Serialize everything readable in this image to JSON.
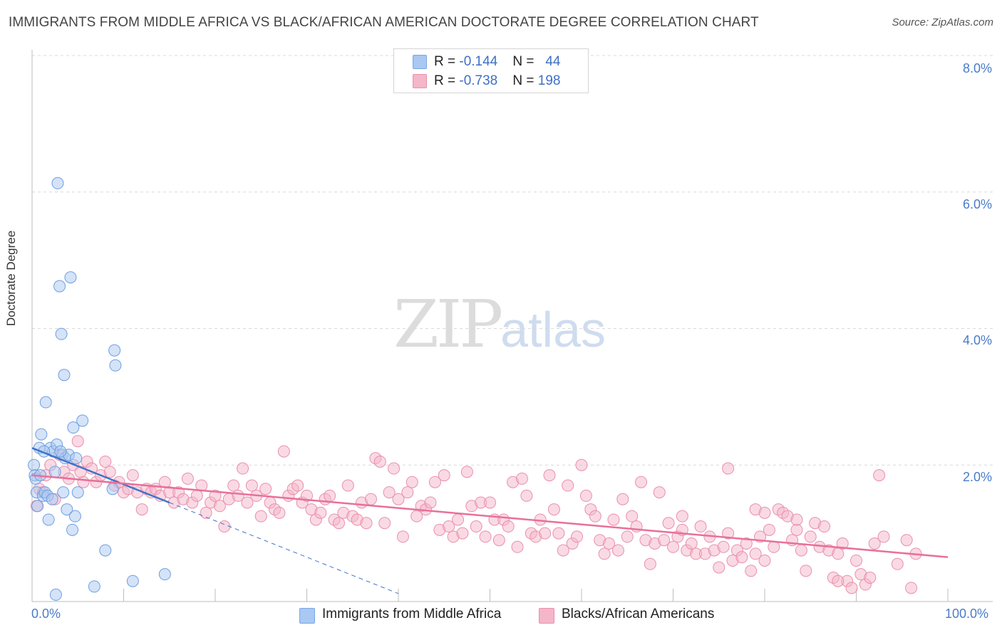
{
  "header": {
    "title": "IMMIGRANTS FROM MIDDLE AFRICA VS BLACK/AFRICAN AMERICAN DOCTORATE DEGREE CORRELATION CHART",
    "source": "Source: ZipAtlas.com"
  },
  "watermark": {
    "zip": "ZIP",
    "atlas": "atlas"
  },
  "legend": {
    "rows": [
      {
        "r_label": "R = ",
        "r_value": "-0.144",
        "n_label": "N = ",
        "n_value": "44",
        "color": "#a9c8f2"
      },
      {
        "r_label": "R = ",
        "r_value": "-0.738",
        "n_label": "N = ",
        "n_value": "198",
        "color": "#f4b6c9"
      }
    ]
  },
  "chart_data": {
    "type": "scatter",
    "title": "IMMIGRANTS FROM MIDDLE AFRICA VS BLACK/AFRICAN AMERICAN DOCTORATE DEGREE CORRELATION CHART",
    "xlabel": "",
    "ylabel": "Doctorate Degree",
    "xlim": [
      0,
      100
    ],
    "ylim": [
      0,
      8.0
    ],
    "x_tick_labels": [
      "0.0%",
      "100.0%"
    ],
    "y_ticks": [
      2.0,
      4.0,
      6.0,
      8.0
    ],
    "y_tick_labels": [
      "2.0%",
      "4.0%",
      "6.0%",
      "8.0%"
    ],
    "grid": true,
    "legend_position": "top-center",
    "series": [
      {
        "name": "Immigrants from Middle Africa",
        "color": "#a9c8f2",
        "stroke": "#6e9fe0",
        "trend": {
          "x0": 0,
          "y0": 2.25,
          "x1": 15,
          "y1": 1.45,
          "dash_to_x": 40
        },
        "points": [
          [
            0.2,
            2.0
          ],
          [
            0.3,
            1.85
          ],
          [
            0.4,
            1.8
          ],
          [
            0.5,
            1.6
          ],
          [
            0.6,
            1.4
          ],
          [
            0.8,
            2.25
          ],
          [
            1.0,
            2.45
          ],
          [
            1.2,
            1.55
          ],
          [
            1.4,
            1.6
          ],
          [
            1.5,
            2.92
          ],
          [
            1.7,
            1.55
          ],
          [
            1.8,
            1.2
          ],
          [
            2.0,
            2.25
          ],
          [
            2.2,
            1.5
          ],
          [
            2.3,
            2.2
          ],
          [
            2.5,
            1.9
          ],
          [
            2.6,
            0.1
          ],
          [
            2.7,
            2.3
          ],
          [
            2.8,
            6.13
          ],
          [
            3.0,
            4.62
          ],
          [
            3.2,
            3.92
          ],
          [
            3.3,
            2.15
          ],
          [
            3.4,
            1.6
          ],
          [
            3.5,
            3.32
          ],
          [
            3.6,
            2.1
          ],
          [
            3.8,
            1.35
          ],
          [
            4.0,
            2.15
          ],
          [
            4.2,
            4.75
          ],
          [
            4.4,
            1.05
          ],
          [
            4.5,
            2.55
          ],
          [
            4.7,
            1.25
          ],
          [
            4.8,
            2.1
          ],
          [
            5.0,
            1.6
          ],
          [
            5.5,
            2.65
          ],
          [
            6.8,
            0.22
          ],
          [
            8.0,
            0.75
          ],
          [
            8.8,
            1.65
          ],
          [
            9.0,
            3.68
          ],
          [
            9.1,
            3.46
          ],
          [
            11.0,
            0.3
          ],
          [
            14.5,
            0.4
          ],
          [
            0.9,
            1.85
          ],
          [
            1.3,
            2.2
          ],
          [
            3.1,
            2.2
          ]
        ]
      },
      {
        "name": "Blacks/African Americans",
        "color": "#f4b6c9",
        "stroke": "#ea8fab",
        "trend": {
          "x0": 0,
          "y0": 1.85,
          "x1": 100,
          "y1": 0.65
        },
        "points": [
          [
            0.5,
            1.4
          ],
          [
            0.8,
            1.65
          ],
          [
            1.2,
            1.6
          ],
          [
            1.5,
            1.85
          ],
          [
            2.0,
            2.0
          ],
          [
            2.5,
            1.5
          ],
          [
            3.0,
            2.15
          ],
          [
            3.5,
            1.9
          ],
          [
            4.0,
            1.8
          ],
          [
            4.5,
            2.0
          ],
          [
            5.0,
            2.35
          ],
          [
            5.3,
            1.9
          ],
          [
            5.6,
            1.75
          ],
          [
            6.0,
            2.05
          ],
          [
            6.5,
            1.95
          ],
          [
            7.0,
            1.75
          ],
          [
            7.5,
            1.85
          ],
          [
            8.0,
            2.05
          ],
          [
            8.5,
            1.9
          ],
          [
            9.0,
            1.7
          ],
          [
            9.5,
            1.75
          ],
          [
            10.0,
            1.6
          ],
          [
            10.5,
            1.65
          ],
          [
            11.0,
            1.85
          ],
          [
            11.5,
            1.6
          ],
          [
            12.0,
            1.35
          ],
          [
            12.5,
            1.65
          ],
          [
            13.0,
            1.6
          ],
          [
            13.5,
            1.65
          ],
          [
            14.0,
            1.55
          ],
          [
            14.5,
            1.75
          ],
          [
            15.0,
            1.6
          ],
          [
            15.5,
            1.45
          ],
          [
            16.0,
            1.6
          ],
          [
            16.5,
            1.5
          ],
          [
            17.0,
            1.8
          ],
          [
            17.5,
            1.45
          ],
          [
            18.0,
            1.55
          ],
          [
            18.5,
            1.7
          ],
          [
            19.0,
            1.3
          ],
          [
            19.5,
            1.45
          ],
          [
            20.0,
            1.55
          ],
          [
            20.5,
            1.4
          ],
          [
            21.0,
            1.1
          ],
          [
            21.5,
            1.5
          ],
          [
            22.0,
            1.7
          ],
          [
            22.5,
            1.55
          ],
          [
            23.0,
            1.95
          ],
          [
            23.5,
            1.45
          ],
          [
            24.0,
            1.7
          ],
          [
            24.5,
            1.55
          ],
          [
            25.0,
            1.25
          ],
          [
            25.5,
            1.65
          ],
          [
            26.0,
            1.45
          ],
          [
            26.5,
            1.35
          ],
          [
            27.0,
            1.3
          ],
          [
            27.5,
            2.2
          ],
          [
            28.0,
            1.55
          ],
          [
            28.5,
            1.65
          ],
          [
            29.0,
            1.7
          ],
          [
            29.5,
            1.45
          ],
          [
            30.0,
            1.55
          ],
          [
            30.5,
            1.35
          ],
          [
            31.0,
            1.2
          ],
          [
            31.5,
            1.3
          ],
          [
            32.0,
            1.5
          ],
          [
            32.5,
            1.55
          ],
          [
            33.0,
            1.2
          ],
          [
            33.5,
            1.15
          ],
          [
            34.0,
            1.3
          ],
          [
            34.5,
            1.7
          ],
          [
            35.0,
            1.25
          ],
          [
            35.5,
            1.2
          ],
          [
            36.0,
            1.45
          ],
          [
            36.5,
            1.15
          ],
          [
            37.0,
            1.5
          ],
          [
            37.5,
            2.1
          ],
          [
            38.0,
            2.05
          ],
          [
            38.5,
            1.15
          ],
          [
            39.0,
            1.6
          ],
          [
            39.5,
            1.95
          ],
          [
            40.0,
            1.5
          ],
          [
            40.5,
            0.95
          ],
          [
            41.0,
            1.6
          ],
          [
            41.5,
            1.75
          ],
          [
            42.0,
            1.25
          ],
          [
            42.5,
            1.4
          ],
          [
            43.0,
            1.35
          ],
          [
            43.5,
            1.45
          ],
          [
            44.0,
            1.75
          ],
          [
            44.5,
            1.05
          ],
          [
            45.0,
            1.85
          ],
          [
            45.5,
            1.1
          ],
          [
            46.0,
            0.95
          ],
          [
            46.5,
            1.2
          ],
          [
            47.0,
            1.0
          ],
          [
            47.5,
            1.9
          ],
          [
            48.0,
            1.4
          ],
          [
            48.5,
            1.1
          ],
          [
            49.0,
            1.45
          ],
          [
            49.5,
            0.95
          ],
          [
            50.0,
            1.45
          ],
          [
            50.5,
            1.2
          ],
          [
            51.0,
            0.9
          ],
          [
            51.5,
            1.2
          ],
          [
            52.0,
            1.1
          ],
          [
            52.5,
            1.75
          ],
          [
            53.0,
            0.8
          ],
          [
            53.5,
            1.8
          ],
          [
            54.0,
            1.55
          ],
          [
            54.5,
            1.0
          ],
          [
            55.0,
            0.95
          ],
          [
            55.5,
            1.2
          ],
          [
            56.0,
            1.0
          ],
          [
            56.5,
            1.85
          ],
          [
            57.0,
            1.35
          ],
          [
            57.5,
            1.0
          ],
          [
            58.0,
            0.75
          ],
          [
            58.5,
            1.7
          ],
          [
            59.0,
            0.85
          ],
          [
            59.5,
            0.95
          ],
          [
            60.0,
            2.0
          ],
          [
            60.5,
            1.55
          ],
          [
            61.0,
            1.35
          ],
          [
            61.5,
            1.25
          ],
          [
            62.0,
            0.9
          ],
          [
            62.5,
            0.7
          ],
          [
            63.0,
            0.85
          ],
          [
            63.5,
            1.2
          ],
          [
            64.0,
            0.75
          ],
          [
            64.5,
            1.5
          ],
          [
            65.0,
            0.95
          ],
          [
            65.5,
            1.25
          ],
          [
            66.0,
            1.1
          ],
          [
            66.5,
            1.75
          ],
          [
            67.0,
            0.9
          ],
          [
            67.5,
            0.55
          ],
          [
            68.0,
            0.85
          ],
          [
            68.5,
            1.6
          ],
          [
            69.0,
            0.9
          ],
          [
            69.5,
            1.15
          ],
          [
            70.0,
            0.8
          ],
          [
            70.5,
            0.95
          ],
          [
            71.0,
            1.25
          ],
          [
            71.5,
            0.75
          ],
          [
            72.0,
            0.85
          ],
          [
            72.5,
            0.7
          ],
          [
            73.0,
            1.1
          ],
          [
            73.5,
            0.7
          ],
          [
            74.0,
            0.95
          ],
          [
            74.5,
            0.75
          ],
          [
            75.0,
            0.5
          ],
          [
            75.5,
            0.8
          ],
          [
            76.0,
            1.0
          ],
          [
            76.5,
            0.6
          ],
          [
            77.0,
            0.75
          ],
          [
            77.5,
            0.65
          ],
          [
            78.0,
            0.85
          ],
          [
            78.5,
            0.45
          ],
          [
            79.0,
            0.7
          ],
          [
            79.5,
            0.95
          ],
          [
            80.0,
            0.6
          ],
          [
            80.5,
            1.05
          ],
          [
            81.0,
            0.8
          ],
          [
            81.5,
            1.35
          ],
          [
            82.0,
            1.3
          ],
          [
            82.5,
            1.25
          ],
          [
            83.0,
            0.9
          ],
          [
            83.5,
            1.05
          ],
          [
            84.0,
            0.75
          ],
          [
            84.5,
            0.45
          ],
          [
            85.0,
            0.95
          ],
          [
            85.5,
            1.15
          ],
          [
            86.0,
            0.8
          ],
          [
            86.5,
            1.1
          ],
          [
            87.0,
            0.75
          ],
          [
            87.5,
            0.35
          ],
          [
            88.0,
            0.7
          ],
          [
            88.5,
            0.85
          ],
          [
            89.0,
            0.3
          ],
          [
            89.5,
            0.2
          ],
          [
            90.0,
            0.6
          ],
          [
            90.5,
            0.4
          ],
          [
            91.0,
            0.25
          ],
          [
            91.5,
            0.35
          ],
          [
            92.0,
            0.85
          ],
          [
            92.5,
            1.85
          ],
          [
            93.0,
            0.95
          ],
          [
            94.5,
            0.55
          ],
          [
            95.5,
            0.9
          ],
          [
            96.0,
            0.2
          ],
          [
            96.5,
            0.7
          ],
          [
            79.0,
            1.35
          ],
          [
            80.0,
            1.3
          ],
          [
            83.5,
            1.2
          ],
          [
            88.0,
            0.3
          ],
          [
            71.0,
            1.05
          ],
          [
            76.0,
            1.95
          ]
        ]
      }
    ]
  },
  "bottom_legend": {
    "items": [
      {
        "label": "Immigrants from Middle Africa",
        "color": "#a9c8f2"
      },
      {
        "label": "Blacks/African Americans",
        "color": "#f4b6c9"
      }
    ]
  }
}
